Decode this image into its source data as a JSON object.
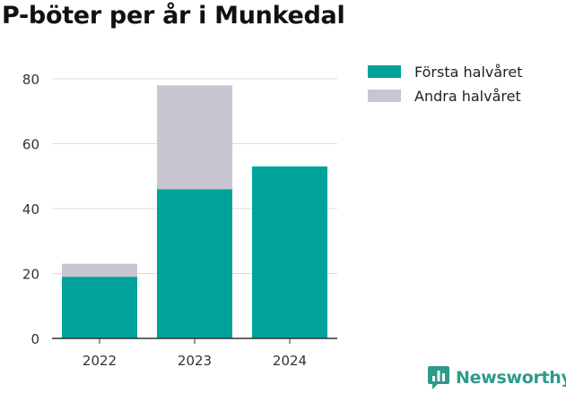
{
  "title": "P-böter per år i Munkedal",
  "chart_data": {
    "type": "bar",
    "stacked": true,
    "categories": [
      "2022",
      "2023",
      "2024"
    ],
    "series": [
      {
        "name": "Första halvåret",
        "values": [
          19,
          46,
          53
        ],
        "color": "#00a39a"
      },
      {
        "name": "Andra halvåret",
        "values": [
          4,
          32,
          0
        ],
        "color": "#c8c6d0"
      }
    ],
    "yticks": [
      0,
      20,
      40,
      60,
      80
    ],
    "ylim": [
      0,
      85
    ],
    "grid": true,
    "legend": "top-right",
    "xlabel": "",
    "ylabel": ""
  },
  "brand": {
    "name": "Newsworthy",
    "icon": "newsworthy-logo-icon",
    "color": "#2e9a8c"
  }
}
